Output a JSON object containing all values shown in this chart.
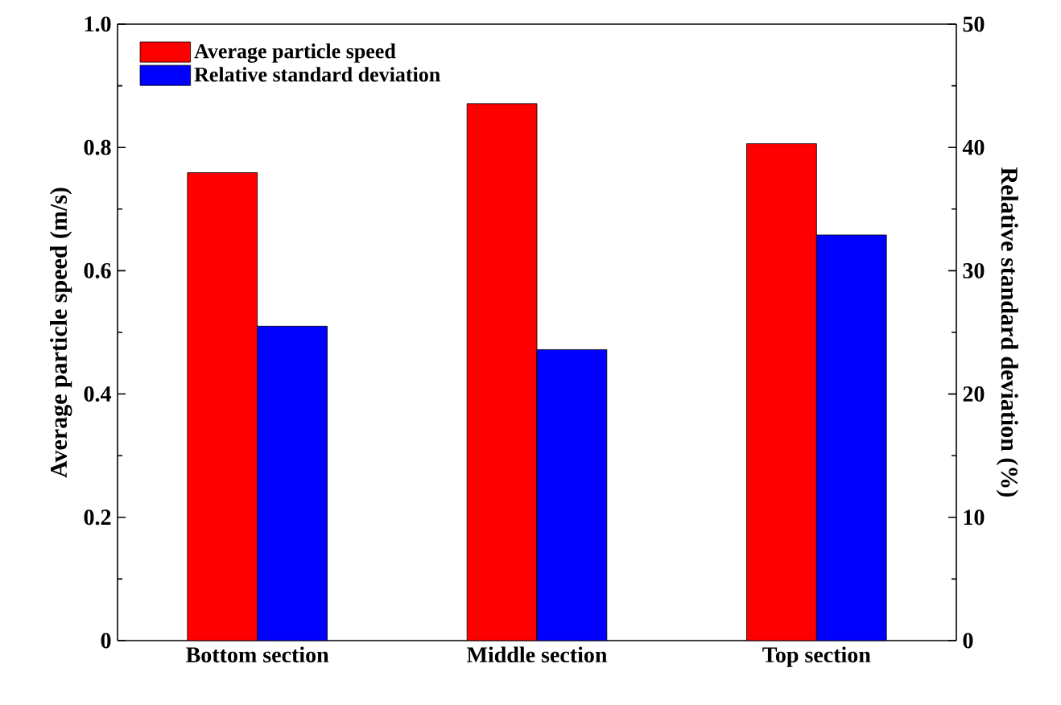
{
  "chart_data": {
    "type": "bar",
    "categories": [
      "Bottom section",
      "Middle section",
      "Top section"
    ],
    "series": [
      {
        "name": "Average particle speed",
        "color": "#ff0000",
        "values": [
          0.759,
          0.871,
          0.806
        ]
      },
      {
        "name": "Relative standard deviation",
        "color": "#0000ff",
        "values": [
          25.5,
          23.6,
          32.9
        ],
        "axis": "y2"
      }
    ],
    "ylabel": "Average particle speed (m/s)",
    "y2label": "Relative standard deviation (%)",
    "ylim": [
      0,
      1
    ],
    "yticks": [
      0,
      0.2,
      0.4,
      0.6,
      0.8,
      {
        "value": 1.0,
        "label": "1.0"
      }
    ],
    "y2lim": [
      0,
      50
    ],
    "y2ticks": [
      0,
      10,
      20,
      30,
      40,
      50
    ],
    "legend": "top left"
  }
}
